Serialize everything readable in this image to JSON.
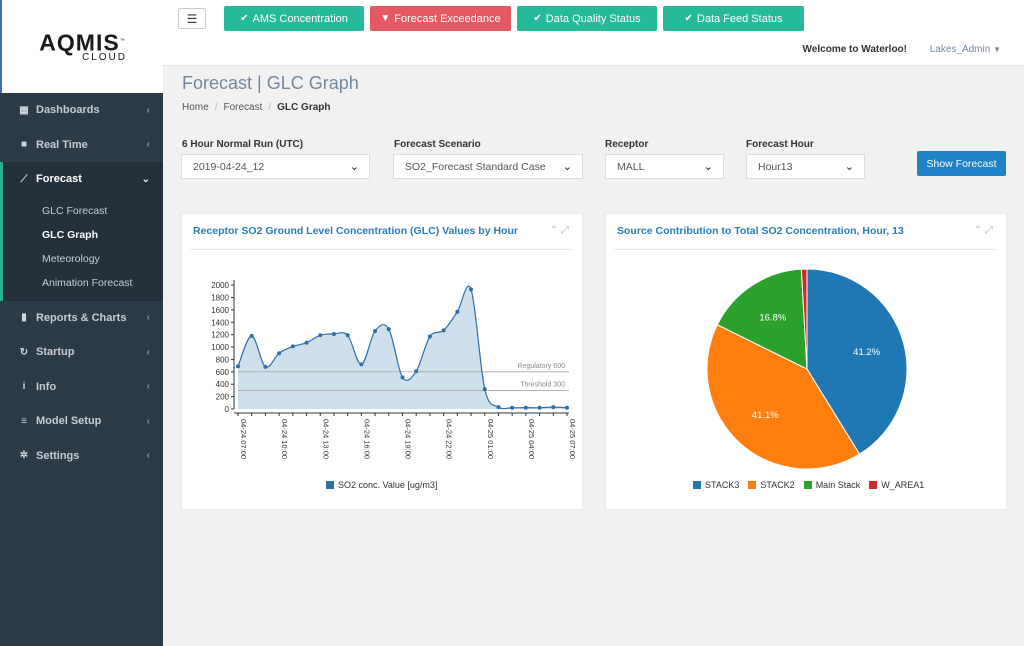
{
  "logo": {
    "main": "AQMIS",
    "sub": "CLOUD",
    "tm": "™"
  },
  "sidebar": {
    "items": [
      {
        "label": "Dashboards",
        "icon": "dashboard-icon"
      },
      {
        "label": "Real Time",
        "icon": "video-camera-icon"
      },
      {
        "label": "Forecast",
        "icon": "line-chart-icon",
        "active": true
      },
      {
        "label": "Reports & Charts",
        "icon": "bar-chart-icon"
      },
      {
        "label": "Startup",
        "icon": "refresh-icon"
      },
      {
        "label": "Info",
        "icon": "info-icon"
      },
      {
        "label": "Model Setup",
        "icon": "database-icon"
      },
      {
        "label": "Settings",
        "icon": "gear-icon"
      }
    ],
    "forecast_sub": [
      "GLC Forecast",
      "GLC Graph",
      "Meteorology",
      "Animation Forecast"
    ]
  },
  "topbar": {
    "buttons": [
      {
        "label": "AMS Concentration",
        "icon": "check-icon",
        "color": "#26b99a"
      },
      {
        "label": "Forecast Exceedance",
        "icon": "thumbs-down-icon",
        "color": "#e55a62"
      },
      {
        "label": "Data Quality Status",
        "icon": "check-icon",
        "color": "#26b99a"
      },
      {
        "label": "Data Feed Status",
        "icon": "check-icon",
        "color": "#26b99a"
      }
    ],
    "welcome": "Welcome to Waterloo!",
    "user": "Lakes_Admin"
  },
  "page": {
    "title": "Forecast | GLC Graph",
    "breadcrumb": [
      "Home",
      "Forecast",
      "GLC Graph"
    ]
  },
  "filters": {
    "run_label": "6 Hour Normal Run (UTC)",
    "run_value": "2019-04-24_12",
    "scenario_label": "Forecast Scenario",
    "scenario_value": "SO2_Forecast Standard Case",
    "receptor_label": "Receptor",
    "receptor_value": "MALL",
    "hour_label": "Forecast Hour",
    "hour_value": "Hour13",
    "show_button": "Show Forecast"
  },
  "panels": {
    "line_title": "Receptor SO2 Ground Level Concentration (GLC) Values by Hour",
    "pie_title": "Source Contribution to Total SO2 Concentration, Hour, 13"
  },
  "chart_data": [
    {
      "type": "area",
      "title": "Receptor SO2 Ground Level Concentration (GLC) Values by Hour",
      "yticks": [
        0,
        200,
        400,
        600,
        800,
        1000,
        1200,
        1400,
        1600,
        1800,
        2000
      ],
      "ylim": [
        0,
        2050
      ],
      "xtick_labels": [
        "04-24 07:00",
        "04-24 10:00",
        "04-24 13:00",
        "04-24 16:00",
        "04-24 19:00",
        "04-24 22:00",
        "04-25 01:00",
        "04-25 04:00",
        "04-25 07:00"
      ],
      "x": [
        "04-24 07:00",
        "04-24 08:00",
        "04-24 09:00",
        "04-24 10:00",
        "04-24 11:00",
        "04-24 12:00",
        "04-24 13:00",
        "04-24 14:00",
        "04-24 15:00",
        "04-24 16:00",
        "04-24 17:00",
        "04-24 18:00",
        "04-24 19:00",
        "04-24 20:00",
        "04-24 21:00",
        "04-24 22:00",
        "04-24 23:00",
        "04-25 00:00",
        "04-25 01:00",
        "04-25 02:00",
        "04-25 03:00",
        "04-25 04:00",
        "04-25 05:00",
        "04-25 06:00",
        "04-25 07:00"
      ],
      "series": [
        {
          "name": "SO2 conc. Value [ug/m3]",
          "color": "#2d6fa8",
          "values": [
            690,
            1180,
            680,
            900,
            1010,
            1070,
            1190,
            1210,
            1190,
            720,
            1260,
            1290,
            510,
            610,
            1170,
            1270,
            1570,
            1930,
            320,
            30,
            20,
            20,
            20,
            30,
            20
          ]
        }
      ],
      "reference_lines": [
        {
          "label": "Regulatory 600",
          "value": 600
        },
        {
          "label": "Threshold 300",
          "value": 300
        }
      ],
      "legend": "bottom"
    },
    {
      "type": "pie",
      "title": "Source Contribution to Total SO2 Concentration, Hour, 13",
      "slices": [
        {
          "label": "STACK3",
          "value": 41.2,
          "color": "#1f77b4",
          "text": "41.2%"
        },
        {
          "label": "STACK2",
          "value": 41.1,
          "color": "#ff7f0e",
          "text": "41.1%"
        },
        {
          "label": "Main Stack",
          "value": 16.8,
          "color": "#2ca02c",
          "text": "16.8%"
        },
        {
          "label": "W_AREA1",
          "value": 0.9,
          "color": "#d62728",
          "text": ""
        }
      ],
      "legend": "bottom"
    }
  ]
}
